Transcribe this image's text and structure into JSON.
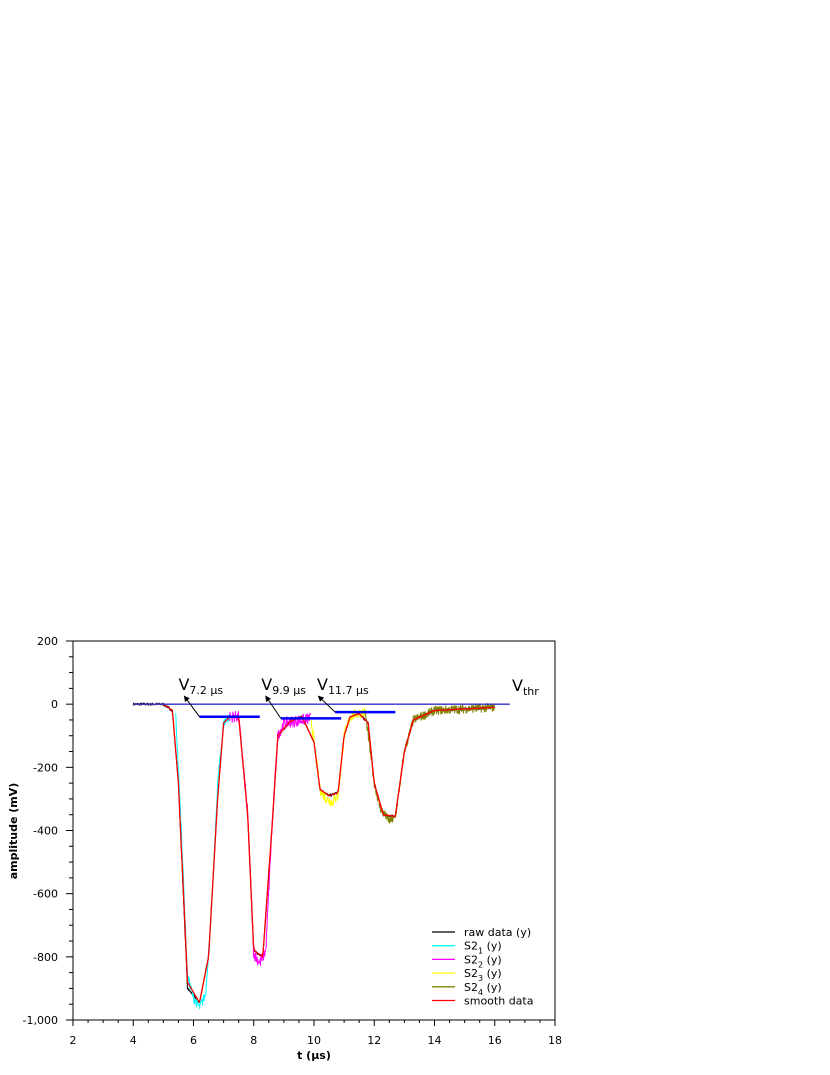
{
  "chart_data": {
    "type": "line",
    "xlabel": "t (µs)",
    "ylabel": "amplitude (mV)",
    "xlim": [
      2,
      18
    ],
    "ylim": [
      -1000,
      200
    ],
    "x_ticks": [
      {
        "value": 2,
        "label": "2"
      },
      {
        "value": 4,
        "label": "4"
      },
      {
        "value": 6,
        "label": "6"
      },
      {
        "value": 8,
        "label": "8"
      },
      {
        "value": 10,
        "label": "10"
      },
      {
        "value": 12,
        "label": "12"
      },
      {
        "value": 14,
        "label": "14"
      },
      {
        "value": 16,
        "label": "16"
      },
      {
        "value": 18,
        "label": "18"
      }
    ],
    "y_ticks": [
      {
        "value": 200,
        "label": "200"
      },
      {
        "value": 0,
        "label": "0"
      },
      {
        "value": -200,
        "label": "-200"
      },
      {
        "value": -400,
        "label": "-400"
      },
      {
        "value": -600,
        "label": "-600"
      },
      {
        "value": -800,
        "label": "-800"
      },
      {
        "value": -1000,
        "label": "-1,000"
      }
    ],
    "grid": false,
    "legend_position": "bottom-right",
    "series": [
      {
        "name": " raw data (y)",
        "name_main": " raw data (y)",
        "name_sub": "",
        "name_tail": "",
        "color": "#000000",
        "noise": 4,
        "x": [
          4.0,
          5.0,
          5.3,
          5.5,
          5.8,
          6.2,
          6.5,
          6.8,
          7.0,
          7.2,
          7.5,
          7.8,
          8.0,
          8.3,
          8.6,
          8.8,
          9.2,
          9.6,
          10.0,
          10.2,
          10.5,
          10.8,
          11.0,
          11.2,
          11.5,
          11.8,
          12.0,
          12.3,
          12.7,
          13.0,
          13.3,
          14.0,
          15.0,
          16.0
        ],
        "y": [
          0,
          0,
          -20,
          -250,
          -900,
          -945,
          -800,
          -300,
          -60,
          -40,
          -40,
          -350,
          -780,
          -800,
          -400,
          -100,
          -55,
          -40,
          -120,
          -270,
          -290,
          -280,
          -100,
          -40,
          -30,
          -60,
          -250,
          -350,
          -355,
          -150,
          -50,
          -20,
          -15,
          -10
        ]
      },
      {
        "name": "S2₁ (y)",
        "name_main": "S2",
        "name_sub": "1",
        "name_tail": " (y)",
        "color": "#00ffff",
        "noise": 14,
        "x": [
          5.4,
          5.6,
          5.8,
          6.0,
          6.2,
          6.4,
          6.6,
          6.8,
          7.0,
          7.2
        ],
        "y": [
          -20,
          -400,
          -860,
          -930,
          -960,
          -920,
          -650,
          -250,
          -60,
          -40
        ]
      },
      {
        "name": "S2₂ (y)",
        "name_main": "S2",
        "name_sub": "2",
        "name_tail": " (y)",
        "color": "#ff00ff",
        "noise": 18,
        "x": [
          7.2,
          7.5,
          7.8,
          8.0,
          8.2,
          8.4,
          8.6,
          8.8,
          9.0,
          9.3,
          9.6,
          9.9
        ],
        "y": [
          -40,
          -40,
          -350,
          -790,
          -820,
          -780,
          -400,
          -100,
          -60,
          -55,
          -50,
          -45
        ]
      },
      {
        "name": "S2₃ (y)",
        "name_main": "S2",
        "name_sub": "3",
        "name_tail": " (y)",
        "color": "#ffff00",
        "noise": 16,
        "x": [
          9.9,
          10.0,
          10.2,
          10.4,
          10.6,
          10.8,
          11.0,
          11.2,
          11.4,
          11.7
        ],
        "y": [
          -45,
          -120,
          -270,
          -300,
          -310,
          -290,
          -100,
          -40,
          -30,
          -25
        ]
      },
      {
        "name": "S2₄ (y)",
        "name_main": "S2",
        "name_sub": "4",
        "name_tail": " (y)",
        "color": "#808000",
        "noise": 14,
        "x": [
          11.7,
          12.0,
          12.2,
          12.5,
          12.7,
          13.0,
          13.3,
          14.0,
          15.0,
          16.0
        ],
        "y": [
          -25,
          -250,
          -330,
          -370,
          -360,
          -150,
          -50,
          -20,
          -15,
          -10
        ]
      },
      {
        "name": " smooth data",
        "name_main": " smooth data",
        "name_sub": "",
        "name_tail": "",
        "color": "#ff0000",
        "noise": 0,
        "x": [
          4.0,
          5.0,
          5.3,
          5.5,
          5.8,
          6.2,
          6.5,
          6.8,
          7.0,
          7.2,
          7.5,
          7.8,
          8.0,
          8.3,
          8.6,
          8.8,
          9.2,
          9.6,
          10.0,
          10.2,
          10.5,
          10.8,
          11.0,
          11.2,
          11.5,
          11.8,
          12.0,
          12.3,
          12.7,
          13.0,
          13.3,
          14.0,
          15.0,
          16.0
        ],
        "y": [
          0,
          0,
          -20,
          -250,
          -880,
          -945,
          -800,
          -300,
          -60,
          -40,
          -40,
          -350,
          -780,
          -800,
          -400,
          -100,
          -55,
          -40,
          -120,
          -270,
          -290,
          -280,
          -100,
          -40,
          -30,
          -60,
          -250,
          -350,
          -355,
          -150,
          -50,
          -20,
          -15,
          -10
        ]
      }
    ],
    "threshold_line": {
      "label": "V",
      "label_sub": "thr",
      "color": "#3333cc",
      "x": [
        4.0,
        16.5
      ],
      "y": 0
    },
    "level_markers": [
      {
        "label": "V",
        "label_sub": "7.2 µs",
        "color": "#0000ff",
        "x": [
          6.2,
          8.2
        ],
        "y": -40,
        "arrow_from": [
          6.2,
          -40
        ],
        "arrow_to": [
          5.7,
          25
        ],
        "label_pos": [
          5.5,
          45
        ]
      },
      {
        "label": "V",
        "label_sub": "9.9 µs",
        "color": "#0000ff",
        "x": [
          8.9,
          10.9
        ],
        "y": -45,
        "arrow_from": [
          8.9,
          -45
        ],
        "arrow_to": [
          8.4,
          25
        ],
        "label_pos": [
          8.25,
          45
        ]
      },
      {
        "label": "V",
        "label_sub": "11.7 µs",
        "color": "#0000ff",
        "x": [
          10.7,
          12.7
        ],
        "y": -25,
        "arrow_from": [
          10.7,
          -25
        ],
        "arrow_to": [
          10.15,
          25
        ],
        "label_pos": [
          10.1,
          45
        ]
      }
    ]
  }
}
